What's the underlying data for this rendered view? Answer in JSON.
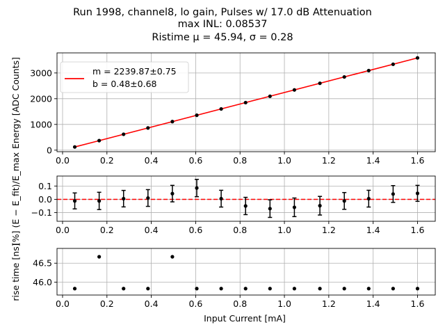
{
  "title": {
    "line1": "Run 1998, channel8, lo gain, Pulses w/ 17.0 dB Attenuation",
    "line2": "max INL: 0.08537",
    "line3": "Ristime μ = 45.94, σ = 0.28"
  },
  "colors": {
    "fit": "#ff0000",
    "points": "#000000",
    "zero_line": "#ff0000",
    "grid": "#b0b0b0"
  },
  "chart_data": [
    {
      "type": "scatter",
      "name": "energy",
      "ylabel": "Energy [ADC Counts]",
      "xlim": [
        -0.025,
        1.68
      ],
      "ylim": [
        -60,
        3780
      ],
      "xticks": [
        0.0,
        0.2,
        0.4,
        0.6,
        0.8,
        1.0,
        1.2,
        1.4,
        1.6
      ],
      "xtick_labels": [
        "0.0",
        "0.2",
        "0.4",
        "0.6",
        "0.8",
        "1.0",
        "1.2",
        "1.4",
        "1.6"
      ],
      "yticks": [
        0,
        1000,
        2000,
        3000
      ],
      "ytick_labels": [
        "0",
        "1000",
        "2000",
        "3000"
      ],
      "grid": true,
      "legend": {
        "position": "top-left",
        "entries": [
          "m = 2239.87±0.75",
          "b = 0.48±0.68"
        ]
      },
      "fit": {
        "slope": 2239.87,
        "intercept": 0.48,
        "x_range": [
          0.055,
          1.6
        ]
      },
      "x": [
        0.055,
        0.165,
        0.275,
        0.385,
        0.495,
        0.605,
        0.715,
        0.825,
        0.935,
        1.045,
        1.16,
        1.27,
        1.38,
        1.49,
        1.6
      ],
      "y": [
        124,
        370,
        617,
        863,
        1110,
        1357,
        1602,
        1848,
        2094,
        2341,
        2598,
        2845,
        3092,
        3338,
        3585
      ]
    },
    {
      "type": "scatter",
      "name": "inl",
      "ylabel": "[%] (E − E_fit)/E_max",
      "xlim": [
        -0.025,
        1.68
      ],
      "ylim": [
        -0.165,
        0.175
      ],
      "xticks": [
        0.0,
        0.2,
        0.4,
        0.6,
        0.8,
        1.0,
        1.2,
        1.4,
        1.6
      ],
      "xtick_labels": [
        "0.0",
        "0.2",
        "0.4",
        "0.6",
        "0.8",
        "1.0",
        "1.2",
        "1.4",
        "1.6"
      ],
      "yticks": [
        -0.1,
        0.0,
        0.1
      ],
      "ytick_labels": [
        "−0.1",
        "0.0",
        "0.1"
      ],
      "grid": true,
      "reference_line": 0.0,
      "x": [
        0.055,
        0.165,
        0.275,
        0.385,
        0.495,
        0.605,
        0.715,
        0.825,
        0.935,
        1.045,
        1.16,
        1.27,
        1.38,
        1.49,
        1.6
      ],
      "y": [
        -0.012,
        -0.012,
        0.005,
        0.01,
        0.043,
        0.085,
        0.005,
        -0.05,
        -0.07,
        -0.06,
        -0.048,
        -0.012,
        0.005,
        0.04,
        0.045
      ],
      "yerr": [
        0.06,
        0.065,
        0.062,
        0.063,
        0.062,
        0.065,
        0.063,
        0.065,
        0.066,
        0.07,
        0.07,
        0.063,
        0.063,
        0.063,
        0.06
      ]
    },
    {
      "type": "scatter",
      "name": "risetime",
      "ylabel": "rise time [ns]",
      "xlabel": "Input Current [mA]",
      "xlim": [
        -0.025,
        1.68
      ],
      "ylim": [
        45.66,
        46.89
      ],
      "xticks": [
        0.0,
        0.2,
        0.4,
        0.6,
        0.8,
        1.0,
        1.2,
        1.4,
        1.6
      ],
      "xtick_labels": [
        "0.0",
        "0.2",
        "0.4",
        "0.6",
        "0.8",
        "1.0",
        "1.2",
        "1.4",
        "1.6"
      ],
      "yticks": [
        46.0,
        46.5
      ],
      "ytick_labels": [
        "46.0",
        "46.5"
      ],
      "grid": true,
      "x": [
        0.055,
        0.165,
        0.275,
        0.385,
        0.495,
        0.605,
        0.715,
        0.825,
        0.935,
        1.045,
        1.16,
        1.27,
        1.38,
        1.49,
        1.6
      ],
      "y": [
        45.83,
        46.67,
        45.83,
        45.83,
        46.67,
        45.83,
        45.83,
        45.83,
        45.83,
        45.83,
        45.83,
        45.83,
        45.83,
        45.83,
        45.83
      ]
    }
  ]
}
